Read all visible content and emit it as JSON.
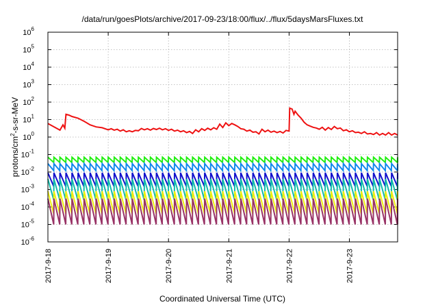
{
  "chart_data": {
    "type": "line",
    "title": "/data/run/goesPlots/archive/2017-09-23/18:00/flux/../flux/5daysMarsFluxes.txt",
    "xlabel": "Coordinated Universal Time (UTC)",
    "ylabel": {
      "prefix": "protons/cm",
      "sup": "2",
      "suffix": "-s-sr-MeV"
    },
    "x_start": "2017-09-18",
    "x_range_days": [
      0,
      5.8
    ],
    "x_ticks": [
      {
        "day": 0,
        "label": "2017-9-18"
      },
      {
        "day": 1,
        "label": "2017-9-19"
      },
      {
        "day": 2,
        "label": "2017-9-20"
      },
      {
        "day": 3,
        "label": "2017-9-21"
      },
      {
        "day": 4,
        "label": "2017-9-22"
      },
      {
        "day": 5,
        "label": "2017-9-23"
      }
    ],
    "y_scale": "log",
    "ylim": [
      1e-06,
      1000000.0
    ],
    "y_ticks": [
      {
        "exp": "-6"
      },
      {
        "exp": "-5"
      },
      {
        "exp": "-4"
      },
      {
        "exp": "-3"
      },
      {
        "exp": "-2"
      },
      {
        "exp": "-1"
      },
      {
        "exp": "0"
      },
      {
        "exp": "1"
      },
      {
        "exp": "2"
      },
      {
        "exp": "3"
      },
      {
        "exp": "4"
      },
      {
        "exp": "5"
      },
      {
        "exp": "6"
      }
    ],
    "grid": true,
    "series": [
      {
        "color": "#ee1111",
        "points": [
          [
            0,
            6
          ],
          [
            0.2,
            2.5
          ],
          [
            0.25,
            5
          ],
          [
            0.28,
            3.2
          ],
          [
            0.3,
            20
          ],
          [
            0.35,
            18
          ],
          [
            0.4,
            15
          ],
          [
            0.5,
            12
          ],
          [
            0.6,
            8
          ],
          [
            0.7,
            5
          ],
          [
            0.8,
            3.8
          ],
          [
            0.9,
            3.4
          ],
          [
            1.0,
            2.6
          ],
          [
            1.05,
            3.0
          ],
          [
            1.1,
            2.5
          ],
          [
            1.15,
            2.8
          ],
          [
            1.2,
            2.2
          ],
          [
            1.25,
            2.6
          ],
          [
            1.3,
            2.0
          ],
          [
            1.35,
            2.3
          ],
          [
            1.4,
            2.0
          ],
          [
            1.45,
            2.4
          ],
          [
            1.5,
            2.3
          ],
          [
            1.55,
            3.1
          ],
          [
            1.6,
            2.6
          ],
          [
            1.65,
            3.0
          ],
          [
            1.7,
            2.5
          ],
          [
            1.75,
            3.1
          ],
          [
            1.8,
            2.7
          ],
          [
            1.85,
            3.2
          ],
          [
            1.9,
            2.6
          ],
          [
            1.95,
            3.0
          ],
          [
            2.0,
            2.4
          ],
          [
            2.05,
            2.8
          ],
          [
            2.1,
            2.2
          ],
          [
            2.15,
            2.5
          ],
          [
            2.2,
            2.0
          ],
          [
            2.25,
            2.3
          ],
          [
            2.3,
            1.8
          ],
          [
            2.35,
            2.1
          ],
          [
            2.4,
            1.6
          ],
          [
            2.45,
            2.6
          ],
          [
            2.5,
            2.0
          ],
          [
            2.55,
            3.0
          ],
          [
            2.6,
            2.4
          ],
          [
            2.65,
            3.2
          ],
          [
            2.7,
            2.6
          ],
          [
            2.75,
            3.4
          ],
          [
            2.8,
            2.8
          ],
          [
            2.85,
            5.5
          ],
          [
            2.9,
            3.5
          ],
          [
            2.95,
            6.5
          ],
          [
            3.0,
            4.5
          ],
          [
            3.05,
            6.0
          ],
          [
            3.1,
            5.0
          ],
          [
            3.15,
            4.0
          ],
          [
            3.2,
            3.0
          ],
          [
            3.25,
            2.8
          ],
          [
            3.3,
            2.2
          ],
          [
            3.35,
            2.5
          ],
          [
            3.4,
            1.9
          ],
          [
            3.45,
            2.0
          ],
          [
            3.5,
            1.5
          ],
          [
            3.55,
            2.8
          ],
          [
            3.6,
            2.0
          ],
          [
            3.65,
            2.5
          ],
          [
            3.7,
            1.9
          ],
          [
            3.75,
            2.2
          ],
          [
            3.8,
            1.8
          ],
          [
            3.85,
            2.1
          ],
          [
            3.9,
            1.7
          ],
          [
            3.95,
            2.4
          ],
          [
            4.0,
            2.2
          ],
          [
            4.01,
            45
          ],
          [
            4.05,
            40
          ],
          [
            4.08,
            20
          ],
          [
            4.1,
            30
          ],
          [
            4.15,
            18
          ],
          [
            4.2,
            12
          ],
          [
            4.25,
            7
          ],
          [
            4.3,
            5
          ],
          [
            4.35,
            4.2
          ],
          [
            4.4,
            3.6
          ],
          [
            4.45,
            3.3
          ],
          [
            4.5,
            2.8
          ],
          [
            4.55,
            3.6
          ],
          [
            4.6,
            2.5
          ],
          [
            4.65,
            3.5
          ],
          [
            4.7,
            2.7
          ],
          [
            4.75,
            4.0
          ],
          [
            4.8,
            3.0
          ],
          [
            4.85,
            3.3
          ],
          [
            4.9,
            2.3
          ],
          [
            4.95,
            2.6
          ],
          [
            5.0,
            2.0
          ],
          [
            5.05,
            2.3
          ],
          [
            5.1,
            1.8
          ],
          [
            5.15,
            1.9
          ],
          [
            5.2,
            1.6
          ],
          [
            5.25,
            2.0
          ],
          [
            5.3,
            1.5
          ],
          [
            5.35,
            1.6
          ],
          [
            5.4,
            1.4
          ],
          [
            5.45,
            1.8
          ],
          [
            5.5,
            1.3
          ],
          [
            5.55,
            1.6
          ],
          [
            5.6,
            1.3
          ],
          [
            5.65,
            1.8
          ],
          [
            5.7,
            1.3
          ],
          [
            5.75,
            1.6
          ],
          [
            5.8,
            1.3
          ]
        ]
      },
      {
        "color": "#22ee11",
        "sawtooth": {
          "low": 0.035,
          "high": 0.07,
          "period": 0.1
        }
      },
      {
        "color": "#1188ee",
        "sawtooth": {
          "low": 0.012,
          "high": 0.03,
          "period": 0.1
        }
      },
      {
        "color": "#1111cc",
        "sawtooth": {
          "low": 0.0015,
          "high": 0.009,
          "period": 0.1
        }
      },
      {
        "color": "#11bbaa",
        "sawtooth": {
          "low": 0.00025,
          "high": 0.004,
          "period": 0.1
        }
      },
      {
        "color": "#eeee11",
        "sawtooth": {
          "low": 4e-05,
          "high": 0.0008,
          "period": 0.1
        }
      },
      {
        "color": "#993366",
        "sawtooth": {
          "low": 1e-05,
          "high": 0.0003,
          "period": 0.1
        }
      }
    ]
  }
}
